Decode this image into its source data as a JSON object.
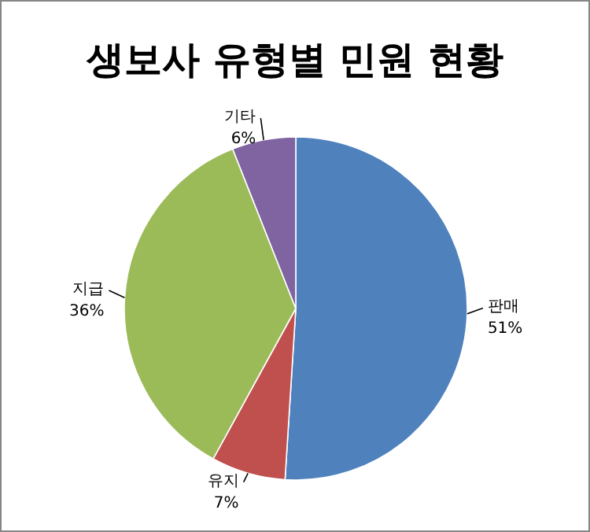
{
  "chart_data": {
    "type": "pie",
    "title": "생보사 유형별 민원 현황",
    "categories": [
      "판매",
      "유지",
      "지급",
      "기타"
    ],
    "values": [
      51,
      7,
      36,
      6
    ],
    "colors": [
      "#4f81bd",
      "#c0504d",
      "#9bbb59",
      "#8064a2"
    ],
    "value_labels": [
      "51%",
      "7%",
      "36%",
      "6%"
    ]
  }
}
